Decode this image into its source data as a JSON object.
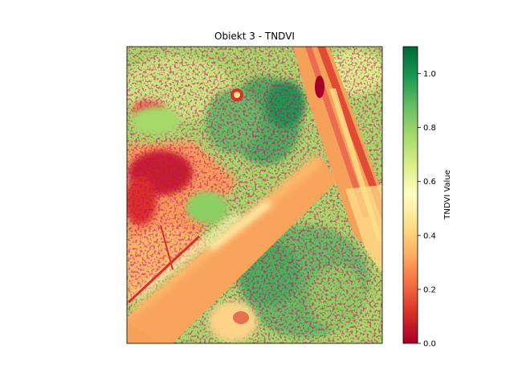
{
  "chart_data": {
    "type": "heatmap",
    "title": "Obiekt 3 - TNDVI",
    "colorbar": {
      "label": "TNDVI Value",
      "range": [
        0.0,
        1.1
      ],
      "ticks": [
        "0.0",
        "0.2",
        "0.4",
        "0.6",
        "0.8",
        "1.0"
      ],
      "tick_values": [
        0.0,
        0.2,
        0.4,
        0.6,
        0.8,
        1.0
      ],
      "colormap": "RdYlGn"
    },
    "axes_visible": false,
    "grid": false
  }
}
